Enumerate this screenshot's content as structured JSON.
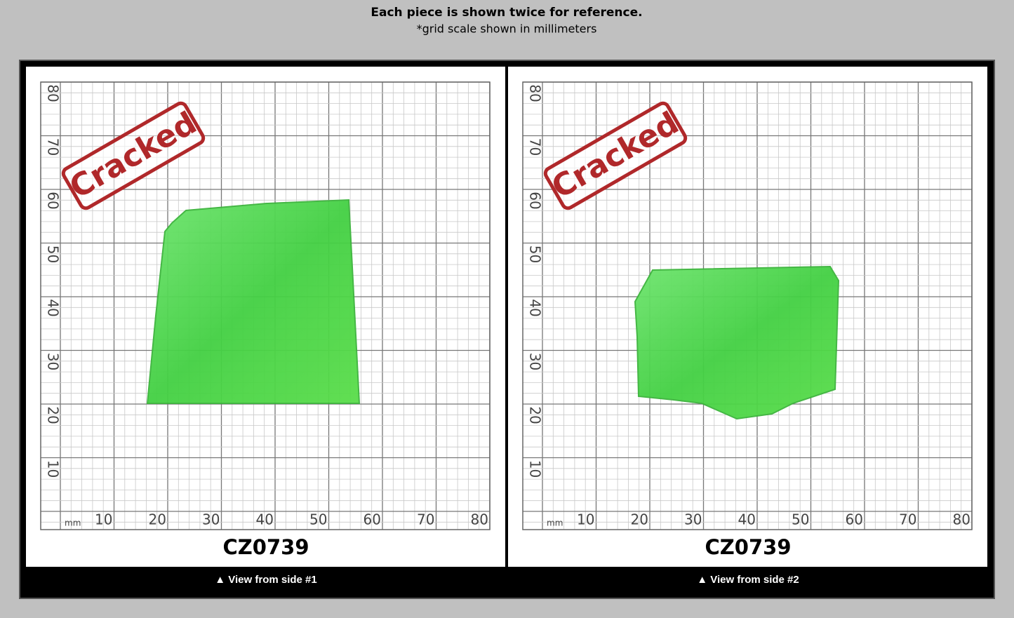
{
  "header": {
    "title": "Each piece is shown twice for reference.",
    "subtitle": "*grid scale shown in millimeters"
  },
  "panels": [
    {
      "stamp": "Cracked",
      "unit": "mm",
      "x_labels": [
        10,
        20,
        30,
        40,
        50,
        60,
        70,
        80
      ],
      "y_labels": [
        10,
        20,
        30,
        40,
        50,
        60,
        70,
        80
      ],
      "code": "CZ0739",
      "caption": "▲ View from side #1"
    },
    {
      "stamp": "Cracked",
      "unit": "mm",
      "x_labels": [
        10,
        20,
        30,
        40,
        50,
        60,
        70,
        80
      ],
      "y_labels": [
        10,
        20,
        30,
        40,
        50,
        60,
        70,
        80
      ],
      "code": "CZ0739",
      "caption": "▲ View from side #2"
    }
  ]
}
